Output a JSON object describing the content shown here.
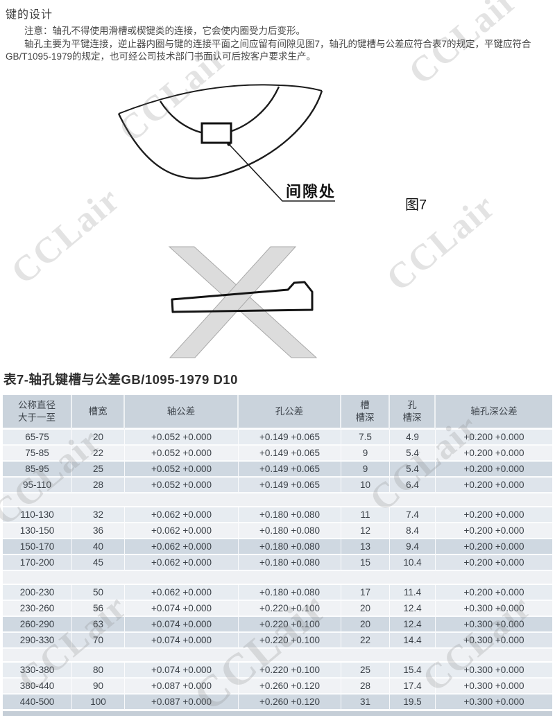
{
  "page": {
    "title": "键的设计",
    "notes": [
      "注意：轴孔不得使用滑槽或楔键类的连接，它会使内圈受力后变形。",
      "轴孔主要为平键连接，逆止器内圈与键的连接平面之间应留有间隙见图7，轴孔的键槽与公差应符合表7的规定，平键应符合GB/T1095-1979的规定，也可经公司技术部门书面认可后按客户要求生产。"
    ],
    "watermark": "CCLair"
  },
  "figure7": {
    "gap_label": "间隙处",
    "caption": "图7"
  },
  "table": {
    "title": "表7-轴孔键槽与公差GB/1095-1979 D10",
    "headers": [
      "公称直径\n大于一至",
      "槽宽",
      "轴公差",
      "孔公差",
      "槽\n槽深",
      "孔\n槽深",
      "轴孔深公差"
    ],
    "groups": [
      [
        [
          "65-75",
          "20",
          "+0.052 +0.000",
          "+0.149 +0.065",
          "7.5",
          "4.9",
          "+0.200 +0.000"
        ],
        [
          "75-85",
          "22",
          "+0.052 +0.000",
          "+0.149 +0.065",
          "9",
          "5.4",
          "+0.200 +0.000"
        ],
        [
          "85-95",
          "25",
          "+0.052 +0.000",
          "+0.149 +0.065",
          "9",
          "5.4",
          "+0.200 +0.000"
        ],
        [
          "95-110",
          "28",
          "+0.052 +0.000",
          "+0.149 +0.065",
          "10",
          "6.4",
          "+0.200 +0.000"
        ]
      ],
      [
        [
          "110-130",
          "32",
          "+0.062 +0.000",
          "+0.180 +0.080",
          "11",
          "7.4",
          "+0.200 +0.000"
        ],
        [
          "130-150",
          "36",
          "+0.062 +0.000",
          "+0.180 +0.080",
          "12",
          "8.4",
          "+0.200 +0.000"
        ],
        [
          "150-170",
          "40",
          "+0.062 +0.000",
          "+0.180 +0.080",
          "13",
          "9.4",
          "+0.200 +0.000"
        ],
        [
          "170-200",
          "45",
          "+0.062 +0.000",
          "+0.180 +0.080",
          "15",
          "10.4",
          "+0.200 +0.000"
        ]
      ],
      [
        [
          "200-230",
          "50",
          "+0.062 +0.000",
          "+0.180 +0.080",
          "17",
          "11.4",
          "+0.200 +0.000"
        ],
        [
          "230-260",
          "56",
          "+0.074 +0.000",
          "+0.220 +0.100",
          "20",
          "12.4",
          "+0.300 +0.000"
        ],
        [
          "260-290",
          "63",
          "+0.074 +0.000",
          "+0.220 +0.100",
          "20",
          "12.4",
          "+0.300 +0.000"
        ],
        [
          "290-330",
          "70",
          "+0.074 +0.000",
          "+0.220 +0.100",
          "22",
          "14.4",
          "+0.300 +0.000"
        ]
      ],
      [
        [
          "330-380",
          "80",
          "+0.074 +0.000",
          "+0.220 +0.100",
          "25",
          "15.4",
          "+0.300 +0.000"
        ],
        [
          "380-440",
          "90",
          "+0.087 +0.000",
          "+0.260 +0.120",
          "28",
          "17.4",
          "+0.300 +0.000"
        ],
        [
          "440-500",
          "100",
          "+0.087 +0.000",
          "+0.260 +0.120",
          "31",
          "19.5",
          "+0.300 +0.000"
        ]
      ]
    ]
  },
  "colors": {
    "header_bg": "#cad3dc",
    "row_a": "#e7ecf1",
    "row_b": "#f0f2f5",
    "row_c": "#cfd8e1",
    "row_d": "#dee4eb",
    "spacer": "#eff1f4",
    "watermark": "rgba(128,128,128,0.22)",
    "text": "#3a4047"
  }
}
